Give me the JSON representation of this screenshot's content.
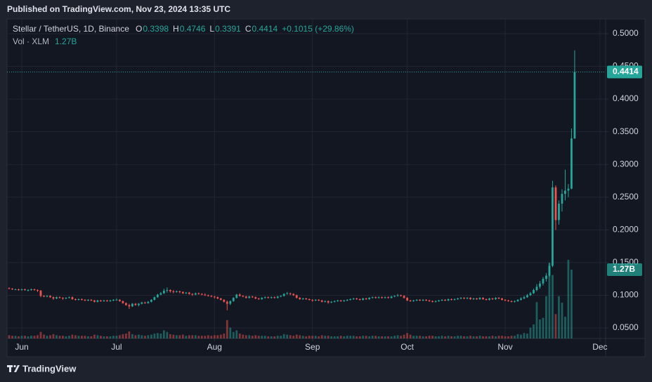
{
  "page": {
    "published": "Published on TradingView.com, Nov 23, 2024 13:35 UTC",
    "brand": "TradingView"
  },
  "chart_data": {
    "type": "candlestick",
    "symbol": "Stellar / TetherUS, 1D, Binance",
    "ohlc": [
      {
        "key": "O",
        "value": "0.3398"
      },
      {
        "key": "H",
        "value": "0.4746"
      },
      {
        "key": "L",
        "value": "0.3391"
      },
      {
        "key": "C",
        "value": "0.4414"
      }
    ],
    "change": "+0.1015 (+29.86%)",
    "up_color": "#26a69a",
    "down_color": "#ef5350",
    "grid": true,
    "xlim": [
      -0.67,
      188.8
    ],
    "xticks": [
      {
        "value": 4,
        "label": "Jun"
      },
      {
        "value": 34,
        "label": "Jul"
      },
      {
        "value": 65,
        "label": "Aug"
      },
      {
        "value": 96,
        "label": "Sep"
      },
      {
        "value": 126,
        "label": "Oct"
      },
      {
        "value": 157,
        "label": "Nov"
      },
      {
        "value": 187,
        "label": "Dec"
      }
    ],
    "ylim": [
      0.0339,
      0.5225
    ],
    "yticks": [
      {
        "value": 0.05,
        "label": "0.0500"
      },
      {
        "value": 0.1,
        "label": "0.1000"
      },
      {
        "value": 0.15,
        "label": "0.1500"
      },
      {
        "value": 0.2,
        "label": "0.2000"
      },
      {
        "value": 0.25,
        "label": "0.2500"
      },
      {
        "value": 0.3,
        "label": "0.3000"
      },
      {
        "value": 0.35,
        "label": "0.3500"
      },
      {
        "value": 0.4,
        "label": "0.4000"
      },
      {
        "value": 0.45,
        "label": "0.4500"
      },
      {
        "value": 0.5,
        "label": "0.5000"
      }
    ],
    "last_price": 0.4414,
    "candles": [
      [
        0.111,
        0.112,
        0.109,
        0.11
      ],
      [
        0.11,
        0.111,
        0.108,
        0.109
      ],
      [
        0.109,
        0.11,
        0.108,
        0.109
      ],
      [
        0.109,
        0.11,
        0.107,
        0.108
      ],
      [
        0.108,
        0.11,
        0.107,
        0.109
      ],
      [
        0.109,
        0.11,
        0.107,
        0.108
      ],
      [
        0.108,
        0.109,
        0.106,
        0.108
      ],
      [
        0.108,
        0.11,
        0.107,
        0.109
      ],
      [
        0.109,
        0.11,
        0.107,
        0.108
      ],
      [
        0.108,
        0.109,
        0.105,
        0.107
      ],
      [
        0.107,
        0.108,
        0.097,
        0.099
      ],
      [
        0.099,
        0.1,
        0.097,
        0.098
      ],
      [
        0.098,
        0.1,
        0.097,
        0.099
      ],
      [
        0.099,
        0.1,
        0.096,
        0.097
      ],
      [
        0.097,
        0.098,
        0.093,
        0.095
      ],
      [
        0.095,
        0.098,
        0.094,
        0.097
      ],
      [
        0.097,
        0.098,
        0.095,
        0.096
      ],
      [
        0.096,
        0.097,
        0.093,
        0.095
      ],
      [
        0.095,
        0.097,
        0.094,
        0.096
      ],
      [
        0.096,
        0.098,
        0.095,
        0.097
      ],
      [
        0.097,
        0.098,
        0.093,
        0.094
      ],
      [
        0.094,
        0.095,
        0.092,
        0.093
      ],
      [
        0.093,
        0.095,
        0.092,
        0.094
      ],
      [
        0.094,
        0.095,
        0.092,
        0.093
      ],
      [
        0.093,
        0.094,
        0.091,
        0.092
      ],
      [
        0.092,
        0.094,
        0.091,
        0.093
      ],
      [
        0.093,
        0.094,
        0.091,
        0.092
      ],
      [
        0.092,
        0.093,
        0.089,
        0.09
      ],
      [
        0.09,
        0.093,
        0.089,
        0.092
      ],
      [
        0.092,
        0.093,
        0.09,
        0.091
      ],
      [
        0.091,
        0.093,
        0.09,
        0.092
      ],
      [
        0.092,
        0.093,
        0.09,
        0.091
      ],
      [
        0.091,
        0.093,
        0.09,
        0.092
      ],
      [
        0.092,
        0.094,
        0.091,
        0.093
      ],
      [
        0.093,
        0.095,
        0.092,
        0.093
      ],
      [
        0.093,
        0.094,
        0.09,
        0.091
      ],
      [
        0.091,
        0.092,
        0.087,
        0.088
      ],
      [
        0.088,
        0.089,
        0.084,
        0.085
      ],
      [
        0.085,
        0.087,
        0.079,
        0.083
      ],
      [
        0.083,
        0.088,
        0.082,
        0.087
      ],
      [
        0.087,
        0.088,
        0.084,
        0.085
      ],
      [
        0.085,
        0.088,
        0.083,
        0.087
      ],
      [
        0.087,
        0.09,
        0.086,
        0.089
      ],
      [
        0.089,
        0.09,
        0.087,
        0.088
      ],
      [
        0.088,
        0.091,
        0.087,
        0.09
      ],
      [
        0.09,
        0.094,
        0.089,
        0.093
      ],
      [
        0.093,
        0.098,
        0.092,
        0.097
      ],
      [
        0.097,
        0.102,
        0.096,
        0.101
      ],
      [
        0.101,
        0.105,
        0.1,
        0.103
      ],
      [
        0.103,
        0.11,
        0.102,
        0.107
      ],
      [
        0.107,
        0.112,
        0.104,
        0.108
      ],
      [
        0.108,
        0.109,
        0.104,
        0.106
      ],
      [
        0.106,
        0.108,
        0.103,
        0.105
      ],
      [
        0.105,
        0.107,
        0.104,
        0.106
      ],
      [
        0.106,
        0.107,
        0.103,
        0.105
      ],
      [
        0.105,
        0.106,
        0.102,
        0.103
      ],
      [
        0.103,
        0.105,
        0.102,
        0.104
      ],
      [
        0.104,
        0.105,
        0.101,
        0.102
      ],
      [
        0.102,
        0.103,
        0.099,
        0.101
      ],
      [
        0.101,
        0.104,
        0.1,
        0.103
      ],
      [
        0.103,
        0.104,
        0.101,
        0.102
      ],
      [
        0.102,
        0.103,
        0.1,
        0.101
      ],
      [
        0.101,
        0.103,
        0.099,
        0.1
      ],
      [
        0.1,
        0.101,
        0.098,
        0.099
      ],
      [
        0.099,
        0.1,
        0.097,
        0.098
      ],
      [
        0.098,
        0.099,
        0.095,
        0.097
      ],
      [
        0.097,
        0.098,
        0.094,
        0.095
      ],
      [
        0.095,
        0.096,
        0.092,
        0.093
      ],
      [
        0.093,
        0.094,
        0.089,
        0.09
      ],
      [
        0.09,
        0.092,
        0.077,
        0.087
      ],
      [
        0.087,
        0.092,
        0.085,
        0.091
      ],
      [
        0.091,
        0.097,
        0.09,
        0.096
      ],
      [
        0.096,
        0.102,
        0.095,
        0.101
      ],
      [
        0.101,
        0.103,
        0.098,
        0.099
      ],
      [
        0.099,
        0.1,
        0.097,
        0.098
      ],
      [
        0.098,
        0.099,
        0.095,
        0.096
      ],
      [
        0.096,
        0.099,
        0.095,
        0.098
      ],
      [
        0.098,
        0.099,
        0.096,
        0.097
      ],
      [
        0.097,
        0.098,
        0.094,
        0.095
      ],
      [
        0.095,
        0.096,
        0.093,
        0.094
      ],
      [
        0.094,
        0.097,
        0.093,
        0.096
      ],
      [
        0.096,
        0.098,
        0.095,
        0.097
      ],
      [
        0.097,
        0.098,
        0.095,
        0.096
      ],
      [
        0.096,
        0.098,
        0.095,
        0.097
      ],
      [
        0.097,
        0.098,
        0.095,
        0.096
      ],
      [
        0.096,
        0.099,
        0.095,
        0.098
      ],
      [
        0.098,
        0.1,
        0.097,
        0.099
      ],
      [
        0.099,
        0.103,
        0.098,
        0.102
      ],
      [
        0.102,
        0.105,
        0.101,
        0.103
      ],
      [
        0.103,
        0.104,
        0.1,
        0.102
      ],
      [
        0.102,
        0.103,
        0.099,
        0.1
      ],
      [
        0.1,
        0.101,
        0.095,
        0.096
      ],
      [
        0.096,
        0.097,
        0.093,
        0.094
      ],
      [
        0.094,
        0.096,
        0.093,
        0.095
      ],
      [
        0.095,
        0.096,
        0.093,
        0.094
      ],
      [
        0.094,
        0.095,
        0.092,
        0.093
      ],
      [
        0.093,
        0.094,
        0.09,
        0.092
      ],
      [
        0.092,
        0.094,
        0.091,
        0.093
      ],
      [
        0.093,
        0.094,
        0.091,
        0.092
      ],
      [
        0.092,
        0.093,
        0.089,
        0.09
      ],
      [
        0.09,
        0.092,
        0.089,
        0.091
      ],
      [
        0.091,
        0.092,
        0.087,
        0.089
      ],
      [
        0.089,
        0.091,
        0.088,
        0.09
      ],
      [
        0.09,
        0.092,
        0.089,
        0.091
      ],
      [
        0.091,
        0.093,
        0.09,
        0.092
      ],
      [
        0.092,
        0.093,
        0.09,
        0.091
      ],
      [
        0.091,
        0.093,
        0.09,
        0.092
      ],
      [
        0.092,
        0.094,
        0.091,
        0.093
      ],
      [
        0.093,
        0.095,
        0.092,
        0.094
      ],
      [
        0.094,
        0.096,
        0.093,
        0.095
      ],
      [
        0.095,
        0.096,
        0.093,
        0.094
      ],
      [
        0.094,
        0.095,
        0.092,
        0.093
      ],
      [
        0.093,
        0.096,
        0.092,
        0.095
      ],
      [
        0.095,
        0.096,
        0.093,
        0.094
      ],
      [
        0.094,
        0.097,
        0.093,
        0.096
      ],
      [
        0.096,
        0.098,
        0.095,
        0.097
      ],
      [
        0.097,
        0.098,
        0.095,
        0.096
      ],
      [
        0.096,
        0.098,
        0.095,
        0.097
      ],
      [
        0.097,
        0.098,
        0.095,
        0.096
      ],
      [
        0.096,
        0.098,
        0.095,
        0.097
      ],
      [
        0.097,
        0.098,
        0.095,
        0.096
      ],
      [
        0.096,
        0.099,
        0.095,
        0.098
      ],
      [
        0.098,
        0.1,
        0.097,
        0.099
      ],
      [
        0.099,
        0.102,
        0.098,
        0.1
      ],
      [
        0.1,
        0.101,
        0.098,
        0.099
      ],
      [
        0.099,
        0.1,
        0.095,
        0.096
      ],
      [
        0.096,
        0.097,
        0.091,
        0.092
      ],
      [
        0.092,
        0.093,
        0.09,
        0.091
      ],
      [
        0.091,
        0.093,
        0.09,
        0.092
      ],
      [
        0.092,
        0.094,
        0.091,
        0.093
      ],
      [
        0.093,
        0.094,
        0.091,
        0.092
      ],
      [
        0.092,
        0.094,
        0.091,
        0.093
      ],
      [
        0.093,
        0.094,
        0.091,
        0.092
      ],
      [
        0.092,
        0.093,
        0.09,
        0.091
      ],
      [
        0.091,
        0.092,
        0.089,
        0.09
      ],
      [
        0.09,
        0.092,
        0.089,
        0.091
      ],
      [
        0.091,
        0.093,
        0.09,
        0.092
      ],
      [
        0.092,
        0.094,
        0.091,
        0.093
      ],
      [
        0.093,
        0.094,
        0.091,
        0.092
      ],
      [
        0.092,
        0.095,
        0.091,
        0.094
      ],
      [
        0.094,
        0.095,
        0.092,
        0.093
      ],
      [
        0.093,
        0.095,
        0.092,
        0.094
      ],
      [
        0.094,
        0.096,
        0.093,
        0.095
      ],
      [
        0.095,
        0.097,
        0.094,
        0.096
      ],
      [
        0.096,
        0.097,
        0.094,
        0.095
      ],
      [
        0.095,
        0.097,
        0.094,
        0.096
      ],
      [
        0.096,
        0.097,
        0.093,
        0.094
      ],
      [
        0.094,
        0.096,
        0.093,
        0.095
      ],
      [
        0.095,
        0.096,
        0.093,
        0.094
      ],
      [
        0.094,
        0.097,
        0.093,
        0.096
      ],
      [
        0.096,
        0.097,
        0.093,
        0.094
      ],
      [
        0.094,
        0.095,
        0.092,
        0.093
      ],
      [
        0.093,
        0.096,
        0.092,
        0.095
      ],
      [
        0.095,
        0.096,
        0.093,
        0.094
      ],
      [
        0.094,
        0.097,
        0.093,
        0.096
      ],
      [
        0.096,
        0.097,
        0.094,
        0.095
      ],
      [
        0.095,
        0.096,
        0.092,
        0.093
      ],
      [
        0.093,
        0.094,
        0.091,
        0.092
      ],
      [
        0.092,
        0.093,
        0.09,
        0.091
      ],
      [
        0.091,
        0.092,
        0.089,
        0.09
      ],
      [
        0.09,
        0.092,
        0.089,
        0.091
      ],
      [
        0.091,
        0.094,
        0.09,
        0.093
      ],
      [
        0.093,
        0.097,
        0.092,
        0.095
      ],
      [
        0.095,
        0.099,
        0.094,
        0.097
      ],
      [
        0.097,
        0.102,
        0.096,
        0.1
      ],
      [
        0.1,
        0.105,
        0.099,
        0.103
      ],
      [
        0.103,
        0.11,
        0.102,
        0.108
      ],
      [
        0.108,
        0.117,
        0.106,
        0.113
      ],
      [
        0.113,
        0.122,
        0.11,
        0.118
      ],
      [
        0.118,
        0.128,
        0.115,
        0.125
      ],
      [
        0.125,
        0.134,
        0.121,
        0.13
      ],
      [
        0.13,
        0.15,
        0.128,
        0.145
      ],
      [
        0.145,
        0.275,
        0.143,
        0.265
      ],
      [
        0.265,
        0.268,
        0.2,
        0.215
      ],
      [
        0.215,
        0.245,
        0.208,
        0.24
      ],
      [
        0.24,
        0.262,
        0.228,
        0.255
      ],
      [
        0.255,
        0.292,
        0.245,
        0.26
      ],
      [
        0.26,
        0.27,
        0.25,
        0.263
      ],
      [
        0.263,
        0.355,
        0.262,
        0.3398
      ],
      [
        0.3398,
        0.4746,
        0.3391,
        0.4414
      ]
    ],
    "volume": {
      "name": "Vol · XLM",
      "axis": "y2",
      "last_value_label": "1.27B",
      "values": [
        0.06,
        0.05,
        0.05,
        0.04,
        0.05,
        0.05,
        0.04,
        0.05,
        0.05,
        0.06,
        0.12,
        0.07,
        0.05,
        0.06,
        0.08,
        0.06,
        0.05,
        0.05,
        0.04,
        0.05,
        0.07,
        0.06,
        0.05,
        0.05,
        0.05,
        0.04,
        0.04,
        0.07,
        0.06,
        0.05,
        0.04,
        0.04,
        0.04,
        0.05,
        0.05,
        0.06,
        0.08,
        0.09,
        0.13,
        0.08,
        0.06,
        0.07,
        0.06,
        0.05,
        0.06,
        0.07,
        0.09,
        0.1,
        0.09,
        0.15,
        0.12,
        0.08,
        0.07,
        0.06,
        0.06,
        0.07,
        0.05,
        0.06,
        0.06,
        0.06,
        0.05,
        0.05,
        0.05,
        0.06,
        0.05,
        0.06,
        0.06,
        0.07,
        0.09,
        0.34,
        0.2,
        0.12,
        0.15,
        0.09,
        0.07,
        0.06,
        0.06,
        0.05,
        0.06,
        0.05,
        0.05,
        0.05,
        0.04,
        0.04,
        0.04,
        0.05,
        0.05,
        0.08,
        0.07,
        0.06,
        0.05,
        0.07,
        0.06,
        0.05,
        0.04,
        0.05,
        0.05,
        0.05,
        0.04,
        0.06,
        0.05,
        0.05,
        0.04,
        0.04,
        0.04,
        0.05,
        0.04,
        0.05,
        0.05,
        0.05,
        0.04,
        0.04,
        0.05,
        0.05,
        0.04,
        0.05,
        0.05,
        0.04,
        0.04,
        0.04,
        0.04,
        0.04,
        0.05,
        0.06,
        0.05,
        0.07,
        0.1,
        0.07,
        0.05,
        0.05,
        0.05,
        0.04,
        0.04,
        0.05,
        0.05,
        0.04,
        0.04,
        0.05,
        0.04,
        0.05,
        0.04,
        0.04,
        0.05,
        0.05,
        0.04,
        0.04,
        0.05,
        0.04,
        0.04,
        0.05,
        0.04,
        0.04,
        0.04,
        0.05,
        0.04,
        0.05,
        0.05,
        0.04,
        0.04,
        0.05,
        0.05,
        0.08,
        0.07,
        0.1,
        0.09,
        0.2,
        0.26,
        0.67,
        0.35,
        0.38,
        0.78,
        1.39,
        1.17,
        0.45,
        0.78,
        0.66,
        0.4,
        1.45,
        1.27
      ]
    },
    "y2lim": [
      0,
      5.894
    ]
  }
}
